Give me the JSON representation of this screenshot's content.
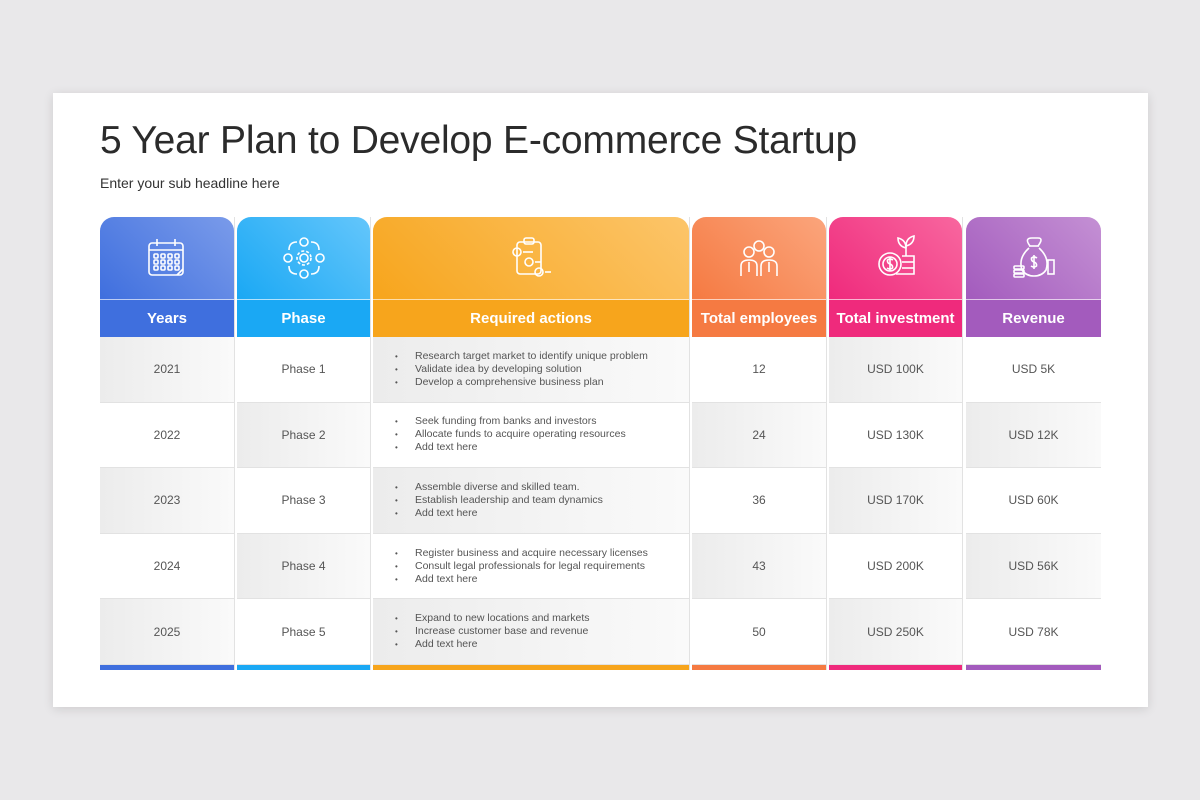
{
  "title": "5 Year Plan to Develop E-commerce Startup",
  "subtitle": "Enter your sub headline here",
  "columns": [
    {
      "label": "Years",
      "icon": "calendar-icon",
      "color": "#3f6fde",
      "light": "#7a9bea"
    },
    {
      "label": "Phase",
      "icon": "process-cycle-icon",
      "color": "#1aa8f4",
      "light": "#64c6fb"
    },
    {
      "label": "Required actions",
      "icon": "checklist-icon",
      "color": "#f7a51c",
      "light": "#fcc56a"
    },
    {
      "label": "Total employees",
      "icon": "team-icon",
      "color": "#f57a42",
      "light": "#fba57c"
    },
    {
      "label": "Total investment",
      "icon": "investment-coin-plant-icon",
      "color": "#ef2a7c",
      "light": "#f8679f"
    },
    {
      "label": "Revenue",
      "icon": "money-bag-icon",
      "color": "#a35bbd",
      "light": "#c490d4"
    }
  ],
  "rows": [
    {
      "year": "2021",
      "phase": "Phase 1",
      "actions": [
        "Research target market to identify unique problem",
        "Validate idea by developing solution",
        "Develop a comprehensive business plan"
      ],
      "employees": "12",
      "investment": "USD 100K",
      "revenue": "USD 5K"
    },
    {
      "year": "2022",
      "phase": "Phase 2",
      "actions": [
        "Seek funding from banks and investors",
        "Allocate funds to acquire operating resources",
        "Add text here"
      ],
      "employees": "24",
      "investment": "USD 130K",
      "revenue": "USD 12K"
    },
    {
      "year": "2023",
      "phase": "Phase 3",
      "actions": [
        "Assemble diverse and skilled team.",
        "Establish leadership and team dynamics",
        "Add text here"
      ],
      "employees": "36",
      "investment": "USD 170K",
      "revenue": "USD 60K"
    },
    {
      "year": "2024",
      "phase": "Phase 4",
      "actions": [
        "Register business and acquire necessary licenses",
        "Consult legal professionals for legal requirements",
        "Add text here"
      ],
      "employees": "43",
      "investment": "USD 200K",
      "revenue": "USD 56K"
    },
    {
      "year": "2025",
      "phase": "Phase 5",
      "actions": [
        "Expand to new locations and markets",
        "Increase customer base and revenue",
        "Add text here"
      ],
      "employees": "50",
      "investment": "USD 250K",
      "revenue": "USD 78K"
    }
  ]
}
